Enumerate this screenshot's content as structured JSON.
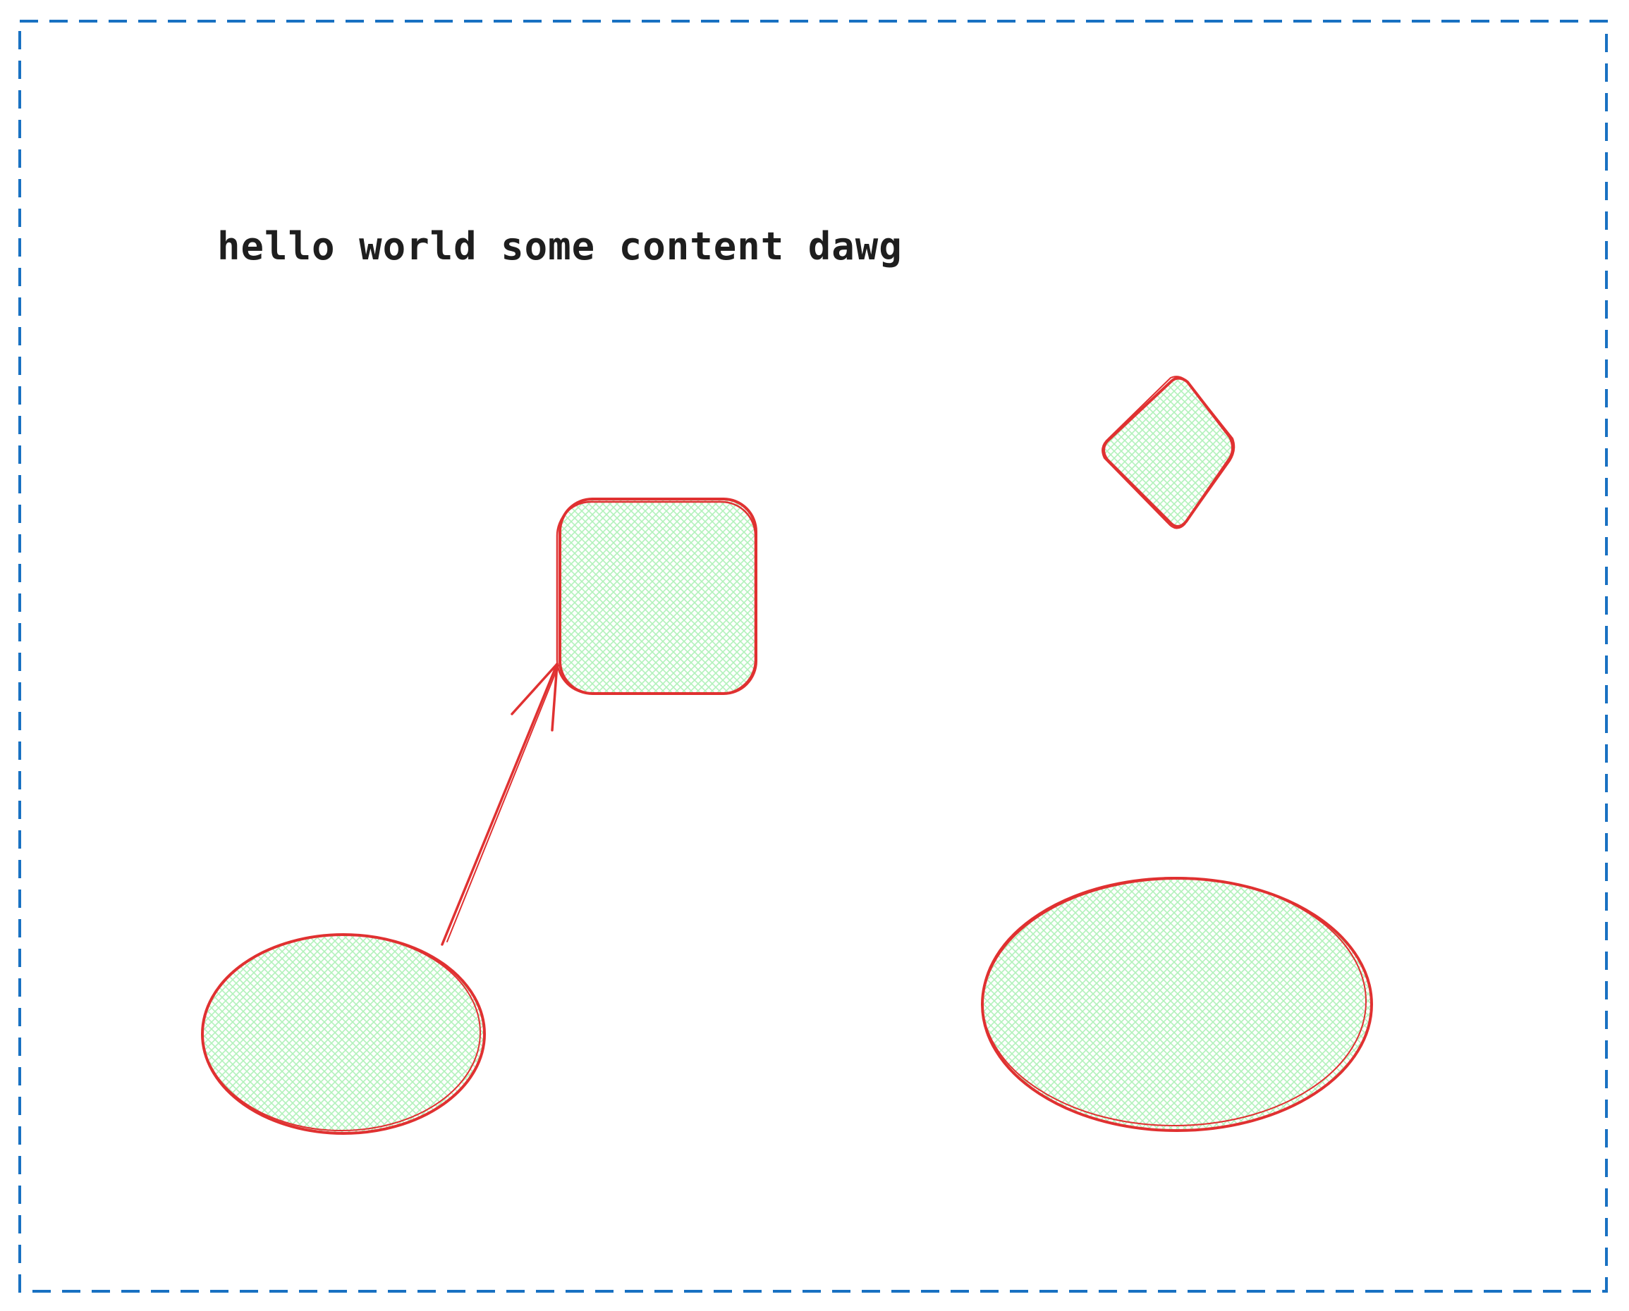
{
  "canvas": {
    "background_color": "#ffffff",
    "frame_stroke_color": "#1971c2",
    "shape_stroke_color": "#e03131",
    "shape_fill_color": "#b2f2bb",
    "text_color": "#1e1e1e"
  },
  "elements": {
    "text_label": "hello world some content dawg",
    "rounded_rectangle": {
      "shape": "rounded-rectangle",
      "fill_style": "cross-hatch"
    },
    "diamond": {
      "shape": "diamond",
      "fill_style": "cross-hatch"
    },
    "small_ellipse": {
      "shape": "ellipse",
      "fill_style": "cross-hatch"
    },
    "large_ellipse": {
      "shape": "ellipse",
      "fill_style": "cross-hatch"
    },
    "arrow": {
      "from": "small-ellipse",
      "to": "rounded-rectangle"
    }
  }
}
